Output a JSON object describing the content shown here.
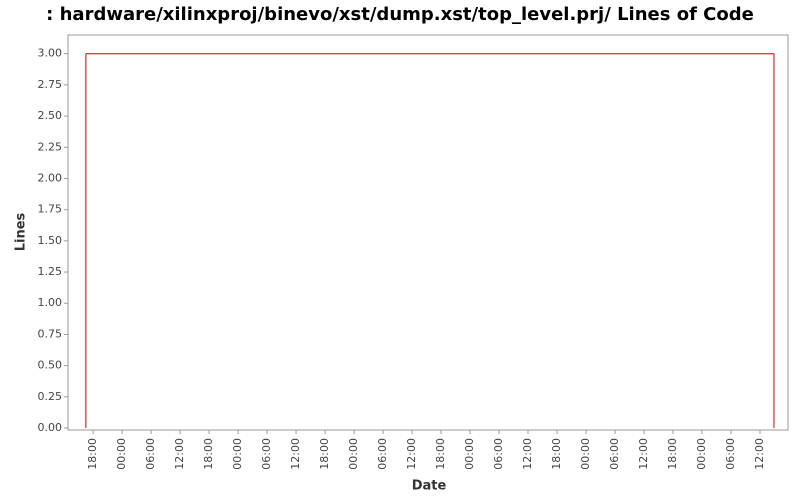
{
  "chart_data": {
    "type": "line",
    "title": ": hardware/xilinxproj/binevo/xst/dump.xst/top_level.prj/ Lines of Code",
    "x_label": "Date",
    "y_label": "Lines",
    "x": [
      16.5,
      158.9
    ],
    "series": [
      {
        "values": [
          3,
          3
        ],
        "color": "#cc0000"
      }
    ],
    "xlim": [
      12.8,
      161.8
    ],
    "xticks": [
      {
        "value": 18,
        "label": "18:00"
      },
      {
        "value": 24,
        "label": "00:00"
      },
      {
        "value": 30,
        "label": "06:00"
      },
      {
        "value": 36,
        "label": "12:00"
      },
      {
        "value": 42,
        "label": "18:00"
      },
      {
        "value": 48,
        "label": "00:00"
      },
      {
        "value": 54,
        "label": "06:00"
      },
      {
        "value": 60,
        "label": "12:00"
      },
      {
        "value": 66,
        "label": "18:00"
      },
      {
        "value": 72,
        "label": "00:00"
      },
      {
        "value": 78,
        "label": "06:00"
      },
      {
        "value": 84,
        "label": "12:00"
      },
      {
        "value": 90,
        "label": "18:00"
      },
      {
        "value": 96,
        "label": "00:00"
      },
      {
        "value": 102,
        "label": "06:00"
      },
      {
        "value": 108,
        "label": "12:00"
      },
      {
        "value": 114,
        "label": "18:00"
      },
      {
        "value": 120,
        "label": "00:00"
      },
      {
        "value": 126,
        "label": "06:00"
      },
      {
        "value": 132,
        "label": "12:00"
      },
      {
        "value": 138,
        "label": "18:00"
      },
      {
        "value": 144,
        "label": "00:00"
      },
      {
        "value": 150,
        "label": "06:00"
      },
      {
        "value": 156,
        "label": "12:00"
      }
    ],
    "ylim": [
      0,
      3.15
    ],
    "yticks": [
      {
        "value": 0,
        "label": "0.00"
      },
      {
        "value": 0.25,
        "label": "0.25"
      },
      {
        "value": 0.5,
        "label": "0.50"
      },
      {
        "value": 0.75,
        "label": "0.75"
      },
      {
        "value": 1,
        "label": "1.00"
      },
      {
        "value": 1.25,
        "label": "1.25"
      },
      {
        "value": 1.5,
        "label": "1.50"
      },
      {
        "value": 1.75,
        "label": "1.75"
      },
      {
        "value": 2,
        "label": "2.00"
      },
      {
        "value": 2.25,
        "label": "2.25"
      },
      {
        "value": 2.5,
        "label": "2.50"
      },
      {
        "value": 2.75,
        "label": "2.75"
      },
      {
        "value": 3,
        "label": "3.00"
      }
    ]
  }
}
